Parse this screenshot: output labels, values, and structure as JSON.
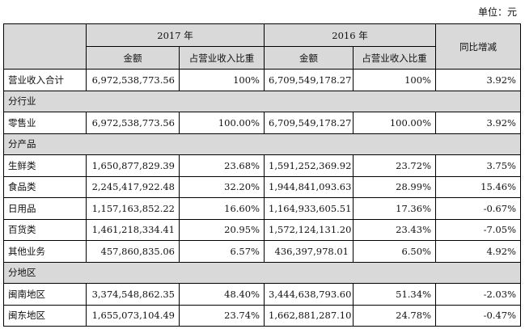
{
  "unit_label": "单位：元",
  "header": {
    "year_2017": "2017 年",
    "year_2016": "2016 年",
    "yoy": "同比增减",
    "amount_2017": "金额",
    "ratio_2017": "占营业收入比重",
    "amount_2016": "金额",
    "ratio_2016": "占营业收入比重"
  },
  "total_row": {
    "label": "营业收入合计",
    "amount_2017": "6,972,538,773.56",
    "ratio_2017": "100%",
    "amount_2016": "6,709,549,178.27",
    "ratio_2016": "100%",
    "yoy": "3.92%"
  },
  "sections": [
    {
      "title": "分行业",
      "rows": [
        {
          "label": "零售业",
          "amount_2017": "6,972,538,773.56",
          "ratio_2017": "100.00%",
          "amount_2016": "6,709,549,178.27",
          "ratio_2016": "100.00%",
          "yoy": "3.92%"
        }
      ]
    },
    {
      "title": "分产品",
      "rows": [
        {
          "label": "生鲜类",
          "amount_2017": "1,650,877,829.39",
          "ratio_2017": "23.68%",
          "amount_2016": "1,591,252,369.92",
          "ratio_2016": "23.72%",
          "yoy": "3.75%"
        },
        {
          "label": "食品类",
          "amount_2017": "2,245,417,922.48",
          "ratio_2017": "32.20%",
          "amount_2016": "1,944,841,093.63",
          "ratio_2016": "28.99%",
          "yoy": "15.46%"
        },
        {
          "label": "日用品",
          "amount_2017": "1,157,163,852.22",
          "ratio_2017": "16.60%",
          "amount_2016": "1,164,933,605.51",
          "ratio_2016": "17.36%",
          "yoy": "-0.67%"
        },
        {
          "label": "百货类",
          "amount_2017": "1,461,218,334.41",
          "ratio_2017": "20.95%",
          "amount_2016": "1,572,124,131.20",
          "ratio_2016": "23.43%",
          "yoy": "-7.05%"
        },
        {
          "label": "其他业务",
          "amount_2017": "457,860,835.06",
          "ratio_2017": "6.57%",
          "amount_2016": "436,397,978.01",
          "ratio_2016": "6.50%",
          "yoy": "4.92%"
        }
      ]
    },
    {
      "title": "分地区",
      "rows": [
        {
          "label": "闽南地区",
          "amount_2017": "3,374,548,862.35",
          "ratio_2017": "48.40%",
          "amount_2016": "3,444,638,793.60",
          "ratio_2016": "51.34%",
          "yoy": "-2.03%"
        },
        {
          "label": "闽东地区",
          "amount_2017": "1,655,073,104.49",
          "ratio_2017": "23.74%",
          "amount_2016": "1,662,881,287.10",
          "ratio_2016": "24.78%",
          "yoy": "-0.47%"
        }
      ]
    }
  ]
}
